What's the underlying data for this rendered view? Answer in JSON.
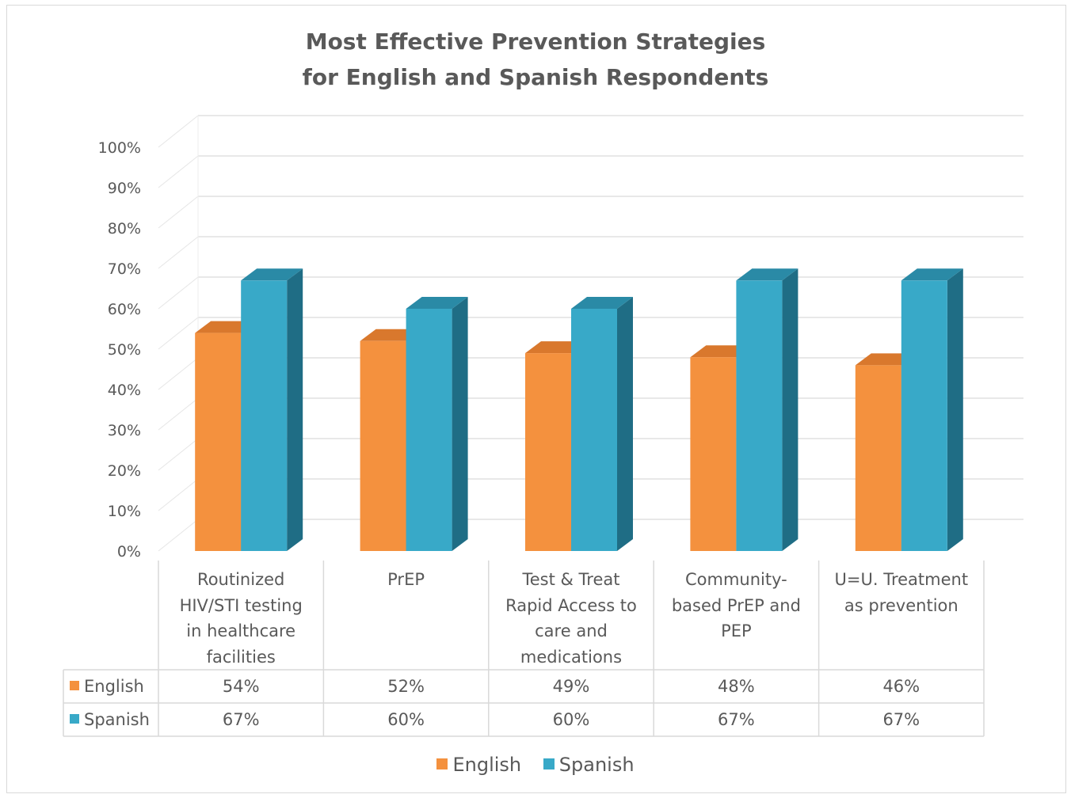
{
  "chart_data": {
    "type": "bar",
    "title": "Most Effective Prevention Strategies for English and Spanish Respondents",
    "title_lines": [
      "Most Effective Prevention Strategies",
      "for English and Spanish Respondents"
    ],
    "categories": [
      "Routinized HIV/STI testing in healthcare facilities",
      "PrEP",
      "Test & Treat Rapid Access to care and medications",
      "Community-based PrEP and PEP",
      "U=U. Treatment as prevention"
    ],
    "category_lines": [
      [
        "Routinized",
        "HIV/STI testing",
        "in healthcare",
        "facilities"
      ],
      [
        "PrEP"
      ],
      [
        "Test & Treat",
        "Rapid Access to",
        "care and",
        "medications"
      ],
      [
        "Community-",
        "based PrEP and",
        "PEP"
      ],
      [
        "U=U. Treatment",
        "as prevention"
      ]
    ],
    "series": [
      {
        "name": "English",
        "values": [
          54,
          52,
          49,
          48,
          46
        ],
        "labels": [
          "54%",
          "52%",
          "49%",
          "48%",
          "46%"
        ],
        "color": "#f4913e",
        "side_color": "#c96f25",
        "top_color": "#d9782d"
      },
      {
        "name": "Spanish",
        "values": [
          67,
          60,
          60,
          67,
          67
        ],
        "labels": [
          "67%",
          "60%",
          "60%",
          "67%",
          "67%"
        ],
        "color": "#38a9c8",
        "side_color": "#1f6d85",
        "top_color": "#2a8aa6"
      }
    ],
    "ylim": [
      0,
      100
    ],
    "yticks": [
      "0%",
      "10%",
      "20%",
      "30%",
      "40%",
      "50%",
      "60%",
      "70%",
      "80%",
      "90%",
      "100%"
    ],
    "xlabel": "",
    "ylabel": "",
    "grid": true,
    "legend_position": "bottom",
    "data_table": true
  }
}
